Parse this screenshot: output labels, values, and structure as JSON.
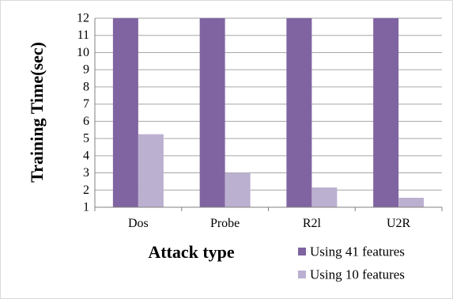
{
  "chart_data": {
    "type": "bar",
    "title": "",
    "xlabel": "Attack type",
    "ylabel": "Training Time(sec)",
    "ylim": [
      1,
      12
    ],
    "yticks": [
      1,
      2,
      3,
      4,
      5,
      6,
      7,
      8,
      9,
      10,
      11,
      12
    ],
    "grid": true,
    "legend_position": "bottom-right",
    "categories": [
      "Dos",
      "Probe",
      "R2l",
      "U2R"
    ],
    "series": [
      {
        "name": "Using 41 features",
        "color": "#8064a2",
        "values": [
          12,
          12,
          12,
          12
        ]
      },
      {
        "name": "Using 10 features",
        "color": "#bcb0d0",
        "values": [
          5.25,
          3.0,
          2.15,
          1.55
        ]
      }
    ]
  }
}
